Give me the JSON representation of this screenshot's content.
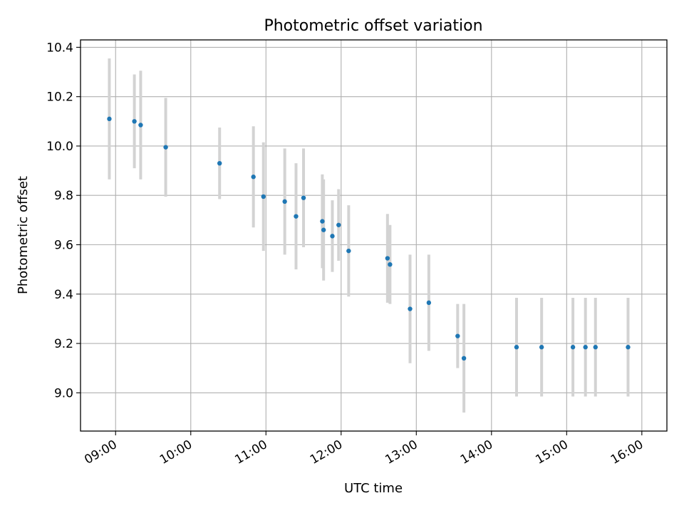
{
  "chart_data": {
    "type": "scatter",
    "title": "Photometric offset variation",
    "xlabel": "UTC time",
    "ylabel": "Photometric offset",
    "xlim": [
      "08:32",
      "16:20"
    ],
    "ylim": [
      8.845,
      10.43
    ],
    "x_ticks": [
      "09:00",
      "10:00",
      "11:00",
      "12:00",
      "13:00",
      "14:00",
      "15:00",
      "16:00"
    ],
    "y_ticks": [
      "9.0",
      "9.2",
      "9.4",
      "9.6",
      "9.8",
      "10.0",
      "10.2",
      "10.4"
    ],
    "grid": true,
    "legend": "none",
    "colors": {
      "points": "#1f77b4",
      "errorbars": "#d3d3d3",
      "grid": "#b0b0b0"
    },
    "series": [
      {
        "points": [
          {
            "x": "08:55",
            "y": 10.11,
            "err": 0.245
          },
          {
            "x": "09:15",
            "y": 10.1,
            "err": 0.19
          },
          {
            "x": "09:20",
            "y": 10.085,
            "err": 0.22
          },
          {
            "x": "09:40",
            "y": 9.995,
            "err": 0.2
          },
          {
            "x": "10:23",
            "y": 9.93,
            "err": 0.145
          },
          {
            "x": "10:50",
            "y": 9.875,
            "err": 0.205
          },
          {
            "x": "10:58",
            "y": 9.795,
            "err": 0.22
          },
          {
            "x": "11:15",
            "y": 9.775,
            "err": 0.215
          },
          {
            "x": "11:24",
            "y": 9.715,
            "err": 0.215
          },
          {
            "x": "11:30",
            "y": 9.79,
            "err": 0.2
          },
          {
            "x": "11:45",
            "y": 9.695,
            "err": 0.19
          },
          {
            "x": "11:46",
            "y": 9.66,
            "err": 0.205
          },
          {
            "x": "11:53",
            "y": 9.635,
            "err": 0.145
          },
          {
            "x": "11:58",
            "y": 9.68,
            "err": 0.145
          },
          {
            "x": "12:06",
            "y": 9.575,
            "err": 0.185
          },
          {
            "x": "12:37",
            "y": 9.545,
            "err": 0.18
          },
          {
            "x": "12:39",
            "y": 9.52,
            "err": 0.16
          },
          {
            "x": "12:55",
            "y": 9.34,
            "err": 0.22
          },
          {
            "x": "13:10",
            "y": 9.365,
            "err": 0.195
          },
          {
            "x": "13:33",
            "y": 9.23,
            "err": 0.13
          },
          {
            "x": "13:38",
            "y": 9.14,
            "err": 0.22
          },
          {
            "x": "14:20",
            "y": 9.185,
            "err": 0.2
          },
          {
            "x": "14:40",
            "y": 9.185,
            "err": 0.2
          },
          {
            "x": "15:05",
            "y": 9.185,
            "err": 0.2
          },
          {
            "x": "15:15",
            "y": 9.185,
            "err": 0.2
          },
          {
            "x": "15:23",
            "y": 9.185,
            "err": 0.2
          },
          {
            "x": "15:49",
            "y": 9.185,
            "err": 0.2
          }
        ]
      }
    ]
  }
}
